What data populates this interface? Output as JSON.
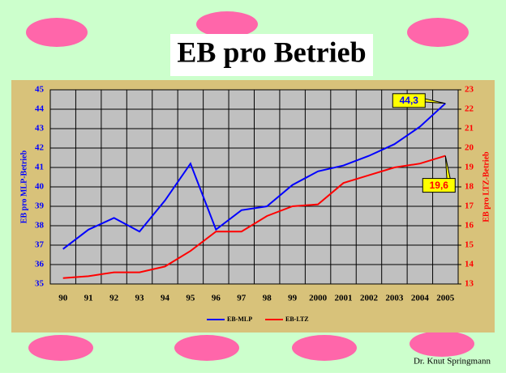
{
  "chart_data": {
    "type": "line",
    "title": "EB pro Betrieb",
    "y_label": "EB pro MLP-Betrieb",
    "y2_label": "EB pro LTZ-Betrieb",
    "categories": [
      "90",
      "91",
      "92",
      "93",
      "94",
      "95",
      "96",
      "97",
      "98",
      "99",
      "2000",
      "2001",
      "2002",
      "2003",
      "2004",
      "2005"
    ],
    "series": [
      {
        "name": "EB-MLP",
        "color": "#0000ff",
        "axis": "y",
        "values": [
          36.8,
          37.8,
          38.4,
          37.7,
          39.3,
          41.2,
          37.8,
          38.8,
          39.0,
          40.1,
          40.8,
          41.1,
          41.6,
          42.2,
          43.1,
          44.3
        ],
        "value_labels": [
          null,
          null,
          null,
          null,
          null,
          null,
          null,
          null,
          null,
          null,
          null,
          null,
          null,
          null,
          null,
          "44,3"
        ]
      },
      {
        "name": "EB-LTZ",
        "color": "#ff0000",
        "axis": "y2",
        "values": [
          13.3,
          13.4,
          13.6,
          13.6,
          13.9,
          14.7,
          15.7,
          15.7,
          16.5,
          17.0,
          17.1,
          18.2,
          18.6,
          19.0,
          19.2,
          19.6
        ],
        "value_labels": [
          null,
          null,
          null,
          null,
          null,
          null,
          null,
          null,
          null,
          null,
          null,
          null,
          null,
          null,
          null,
          "19,6"
        ]
      }
    ],
    "ylim": [
      35,
      45
    ],
    "yticks": [
      35,
      36,
      37,
      38,
      39,
      40,
      41,
      42,
      43,
      44,
      45
    ],
    "y2lim": [
      13,
      23
    ],
    "y2ticks": [
      13,
      14,
      15,
      16,
      17,
      18,
      19,
      20,
      21,
      22,
      23
    ],
    "grid": true,
    "legend": "bottom",
    "footer": "Dr. Knut Springmann"
  }
}
